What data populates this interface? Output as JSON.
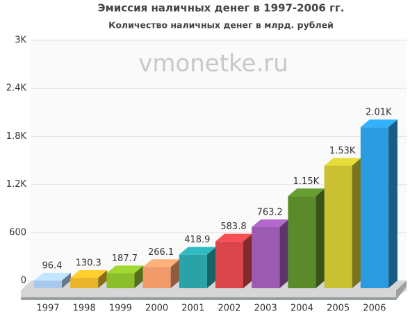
{
  "chart_data": {
    "type": "bar3d",
    "title": "Эмиссия наличных денег в 1997-2006 гг.",
    "subtitle": "Количество наличных денег в млрд. рублей",
    "watermark": "vmonetke.ru",
    "categories": [
      "1997",
      "1998",
      "1999",
      "2000",
      "2001",
      "2002",
      "2003",
      "2004",
      "2005",
      "2006"
    ],
    "values": [
      96.4,
      130.3,
      187.7,
      266.1,
      418.9,
      583.8,
      763.2,
      1150,
      1530,
      2010
    ],
    "value_labels": [
      "96.4",
      "130.3",
      "187.7",
      "266.1",
      "418.9",
      "583.8",
      "763.2",
      "1.15K",
      "1.53K",
      "2.01K"
    ],
    "colors": [
      "#a9c8ee",
      "#e8b52a",
      "#8cbd2a",
      "#f09a6a",
      "#2aa3a8",
      "#d9454a",
      "#9b5bb0",
      "#5b8a2a",
      "#c9c032",
      "#2a9be0"
    ],
    "ylim": [
      0,
      3000
    ],
    "yticks": [
      0,
      600,
      {
        "value": 1200,
        "label": "1.2K"
      },
      {
        "value": 1800,
        "label": "1.8K"
      },
      {
        "value": 2400,
        "label": "2.4K"
      },
      {
        "value": 3000,
        "label": "3K"
      }
    ],
    "grid": true
  }
}
